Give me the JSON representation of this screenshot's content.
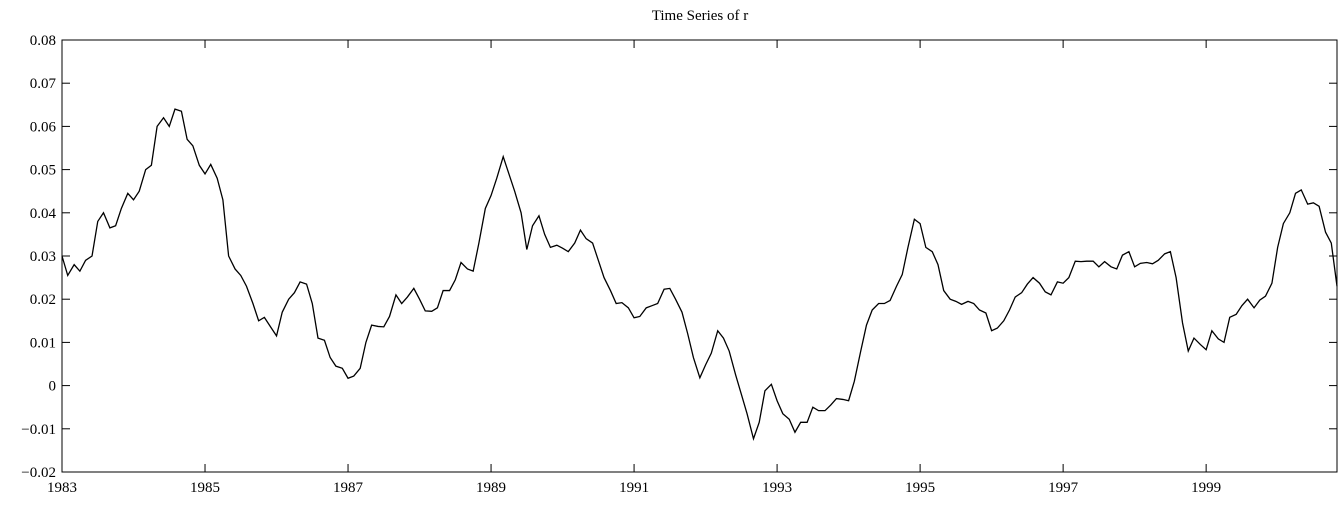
{
  "chart_data": {
    "type": "line",
    "title": "Time Series of r",
    "x": [
      1983.0,
      1983.08,
      1983.17,
      1983.25,
      1983.33,
      1983.42,
      1983.5,
      1983.58,
      1983.67,
      1983.75,
      1983.83,
      1983.92,
      1984.0,
      1984.08,
      1984.17,
      1984.25,
      1984.33,
      1984.42,
      1984.5,
      1984.58,
      1984.67,
      1984.75,
      1984.83,
      1984.92,
      1985.0,
      1985.08,
      1985.17,
      1985.25,
      1985.33,
      1985.42,
      1985.5,
      1985.58,
      1985.67,
      1985.75,
      1985.83,
      1985.92,
      1986.0,
      1986.08,
      1986.17,
      1986.25,
      1986.33,
      1986.42,
      1986.5,
      1986.58,
      1986.67,
      1986.75,
      1986.83,
      1986.92,
      1987.0,
      1987.08,
      1987.17,
      1987.25,
      1987.33,
      1987.42,
      1987.5,
      1987.58,
      1987.67,
      1987.75,
      1987.83,
      1987.92,
      1988.0,
      1988.08,
      1988.17,
      1988.25,
      1988.33,
      1988.42,
      1988.5,
      1988.58,
      1988.67,
      1988.75,
      1988.83,
      1988.92,
      1989.0,
      1989.08,
      1989.17,
      1989.25,
      1989.33,
      1989.42,
      1989.5,
      1989.58,
      1989.67,
      1989.75,
      1989.83,
      1989.92,
      1990.0,
      1990.08,
      1990.17,
      1990.25,
      1990.33,
      1990.42,
      1990.5,
      1990.58,
      1990.67,
      1990.75,
      1990.83,
      1990.92,
      1991.0,
      1991.08,
      1991.17,
      1991.25,
      1991.33,
      1991.42,
      1991.5,
      1991.58,
      1991.67,
      1991.75,
      1991.83,
      1991.92,
      1992.0,
      1992.08,
      1992.17,
      1992.25,
      1992.33,
      1992.42,
      1992.5,
      1992.58,
      1992.67,
      1992.75,
      1992.83,
      1992.92,
      1993.0,
      1993.08,
      1993.17,
      1993.25,
      1993.33,
      1993.42,
      1993.5,
      1993.58,
      1993.67,
      1993.75,
      1993.83,
      1993.92,
      1994.0,
      1994.08,
      1994.17,
      1994.25,
      1994.33,
      1994.42,
      1994.5,
      1994.58,
      1994.67,
      1994.75,
      1994.83,
      1994.92,
      1995.0,
      1995.08,
      1995.17,
      1995.25,
      1995.33,
      1995.42,
      1995.5,
      1995.58,
      1995.67,
      1995.75,
      1995.83,
      1995.92,
      1996.0,
      1996.08,
      1996.17,
      1996.25,
      1996.33,
      1996.42,
      1996.5,
      1996.58,
      1996.67,
      1996.75,
      1996.83,
      1996.92,
      1997.0,
      1997.08,
      1997.17,
      1997.25,
      1997.33,
      1997.42,
      1997.5,
      1997.58,
      1997.67,
      1997.75,
      1997.83,
      1997.92,
      1998.0,
      1998.08,
      1998.17,
      1998.25,
      1998.33,
      1998.42,
      1998.5,
      1998.58,
      1998.67,
      1998.75,
      1998.83,
      1998.92,
      1999.0,
      1999.08,
      1999.17,
      1999.25,
      1999.33,
      1999.42,
      1999.5,
      1999.58,
      1999.67,
      1999.75,
      1999.83,
      1999.92,
      2000.0,
      2000.08,
      2000.17,
      2000.25,
      2000.33,
      2000.42,
      2000.5,
      2000.58,
      2000.67,
      2000.75,
      2000.83
    ],
    "values": [
      0.03,
      0.0255,
      0.028,
      0.0265,
      0.029,
      0.03,
      0.038,
      0.04,
      0.0365,
      0.037,
      0.041,
      0.0445,
      0.043,
      0.045,
      0.05,
      0.051,
      0.06,
      0.062,
      0.06,
      0.064,
      0.0635,
      0.057,
      0.0555,
      0.051,
      0.049,
      0.0512,
      0.048,
      0.043,
      0.03,
      0.027,
      0.0255,
      0.023,
      0.019,
      0.015,
      0.0158,
      0.0135,
      0.0115,
      0.017,
      0.02,
      0.0215,
      0.024,
      0.0235,
      0.019,
      0.011,
      0.0105,
      0.0065,
      0.0045,
      0.004,
      0.0017,
      0.0022,
      0.004,
      0.01,
      0.014,
      0.0137,
      0.0136,
      0.016,
      0.021,
      0.019,
      0.0205,
      0.0225,
      0.02,
      0.0173,
      0.0172,
      0.018,
      0.022,
      0.022,
      0.0245,
      0.0285,
      0.027,
      0.0265,
      0.033,
      0.041,
      0.044,
      0.048,
      0.053,
      0.049,
      0.045,
      0.04,
      0.0315,
      0.037,
      0.0393,
      0.035,
      0.032,
      0.0325,
      0.0318,
      0.031,
      0.033,
      0.036,
      0.034,
      0.033,
      0.029,
      0.025,
      0.022,
      0.019,
      0.0192,
      0.018,
      0.0157,
      0.016,
      0.018,
      0.0185,
      0.019,
      0.0223,
      0.0225,
      0.02,
      0.017,
      0.012,
      0.0065,
      0.0018,
      0.0048,
      0.0075,
      0.0127,
      0.011,
      0.008,
      0.0025,
      -0.002,
      -0.0065,
      -0.0123,
      -0.0085,
      -0.0012,
      0.0003,
      -0.0035,
      -0.0065,
      -0.0078,
      -0.0108,
      -0.0085,
      -0.0085,
      -0.005,
      -0.0058,
      -0.0058,
      -0.0045,
      -0.003,
      -0.0032,
      -0.0035,
      0.001,
      0.008,
      0.014,
      0.0175,
      0.019,
      0.019,
      0.0197,
      0.023,
      0.0257,
      0.032,
      0.0385,
      0.0375,
      0.032,
      0.031,
      0.028,
      0.022,
      0.02,
      0.0195,
      0.0188,
      0.0195,
      0.019,
      0.0175,
      0.0168,
      0.0127,
      0.0133,
      0.015,
      0.0175,
      0.0205,
      0.0215,
      0.0235,
      0.025,
      0.0237,
      0.0217,
      0.021,
      0.024,
      0.0237,
      0.025,
      0.0288,
      0.0287,
      0.0288,
      0.0288,
      0.0275,
      0.0287,
      0.0275,
      0.027,
      0.0302,
      0.031,
      0.0275,
      0.0283,
      0.0285,
      0.0282,
      0.029,
      0.0305,
      0.031,
      0.025,
      0.0145,
      0.008,
      0.011,
      0.0095,
      0.0083,
      0.0127,
      0.0108,
      0.01,
      0.0158,
      0.0165,
      0.0185,
      0.02,
      0.018,
      0.0198,
      0.0207,
      0.0237,
      0.032,
      0.0375,
      0.04,
      0.0445,
      0.0453,
      0.042,
      0.0423,
      0.0415,
      0.0355,
      0.033,
      0.023
    ],
    "color": "#000000",
    "xlim": [
      1983,
      2000.83
    ],
    "xticks": [
      1983,
      1985,
      1987,
      1989,
      1991,
      1993,
      1995,
      1997,
      1999
    ],
    "ylim": [
      -0.02,
      0.08
    ],
    "yticks": [
      {
        "value": -0.02,
        "label": "−0.02"
      },
      {
        "value": -0.01,
        "label": "−0.01"
      },
      0,
      0.01,
      0.02,
      0.03,
      0.04,
      0.05,
      0.06,
      0.07,
      0.08
    ],
    "grid": false
  }
}
